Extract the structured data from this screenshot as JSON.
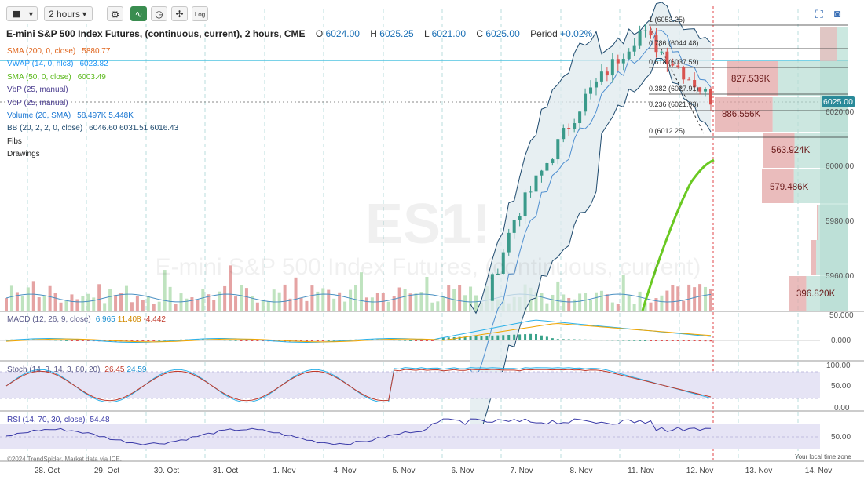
{
  "toolbar": {
    "chart_type_icon": "candlestick-icon",
    "interval": "2 hours",
    "log_label": "Log",
    "icons": [
      "gear-icon",
      "line-studies-icon",
      "clock-icon",
      "drawing-icon",
      "log-scale-icon",
      "fullscreen-icon",
      "camera-icon"
    ]
  },
  "header": {
    "name": "E-mini S&P 500 Index Futures, (continuous, current), 2 hours, CME",
    "open_label": "O",
    "open": "6024.00",
    "high_label": "H",
    "high": "6025.25",
    "low_label": "L",
    "low": "6021.00",
    "close_label": "C",
    "close": "6025.00",
    "period_label": "Period",
    "period": "+0.02%"
  },
  "studies": [
    {
      "label": "SMA (200, 0, close)",
      "value": "5880.77",
      "color": "#e0661e"
    },
    {
      "label": "VWAP (14, 0, hlc3)",
      "value": "6023.82",
      "color": "#2196f3"
    },
    {
      "label": "SMA (50, 0, close)",
      "value": "6003.49",
      "color": "#6ac922"
    },
    {
      "label": "VbP (25, manual)",
      "value": "",
      "color": "#4a3d8f"
    },
    {
      "label": "VbP (25, manual)",
      "value": "",
      "color": "#4a3d8f"
    },
    {
      "label": "Volume (20, SMA)",
      "value": "58.497K  5.448K",
      "color": "#1976d2"
    },
    {
      "label": "BB (20, 2, 2, 0, close)",
      "value": "6046.60  6031.51  6016.43",
      "color": "#1e4a6e"
    },
    {
      "label": "Fibs",
      "value": "",
      "color": "#222222"
    },
    {
      "label": "Drawings",
      "value": "",
      "color": "#222222"
    }
  ],
  "watermark": {
    "symbol": "ES1!",
    "name": "E-mini S&P 500 Index Futures, (continuous, current)"
  },
  "price_axis": {
    "ticks": [
      "6020.00",
      "6000.00",
      "5980.00",
      "5960.00"
    ],
    "last_price": "6025.00"
  },
  "vbp_labels": [
    "827.539K",
    "886.556K",
    "563.924K",
    "579.486K",
    "396.820K"
  ],
  "fib_levels": [
    {
      "label": "1 (6053.25)"
    },
    {
      "label": "0.786 (6044.48)"
    },
    {
      "label": "0.618 (6037.59)"
    },
    {
      "label": "0.382 (6027.91)"
    },
    {
      "label": "0.236 (6021.93)"
    },
    {
      "label": "0 (6012.25)"
    }
  ],
  "macd": {
    "label": "MACD (12, 26, 9, close)",
    "v1": "6.965",
    "v2": "11.408",
    "v3": "-4.442",
    "ticks": [
      "50.000",
      "0.000"
    ]
  },
  "stoch": {
    "label": "Stoch (14, 3, 14, 3, 80, 20)",
    "v1": "26.45",
    "v2": "24.59",
    "ticks": [
      "100.00",
      "50.00",
      "0.00"
    ]
  },
  "rsi": {
    "label": "RSI (14, 70, 30, close)",
    "v1": "54.48",
    "ticks": [
      "50.00"
    ]
  },
  "x_labels": [
    "28. Oct",
    "29. Oct",
    "30. Oct",
    "31. Oct",
    "1. Nov",
    "4. Nov",
    "5. Nov",
    "6. Nov",
    "7. Nov",
    "8. Nov",
    "11. Nov",
    "12. Nov",
    "13. Nov",
    "14. Nov"
  ],
  "footer": {
    "copyright": "©2024 TrendSpider. Market data via ICE.",
    "timezone": "Your local time zone"
  },
  "colors": {
    "up": "#3a9a8a",
    "down": "#d9534f",
    "sma50": "#6ac922",
    "vwap": "#4fc3e0",
    "bb": "#1e4a6e",
    "accent": "#2a8a99"
  },
  "chart_data": {
    "type": "candlestick",
    "interval": "2 hours",
    "x": [
      "28. Oct",
      "29. Oct",
      "30. Oct",
      "31. Oct",
      "1. Nov",
      "4. Nov",
      "5. Nov",
      "6. Nov",
      "7. Nov",
      "8. Nov",
      "11. Nov",
      "12. Nov"
    ],
    "last": {
      "open": 6024.0,
      "high": 6025.25,
      "low": 6021.0,
      "close": 6025.0
    },
    "price_ticks": [
      6020,
      6000,
      5980,
      5960
    ],
    "fib_levels": [
      6053.25,
      6044.48,
      6037.59,
      6027.91,
      6021.93,
      6012.25
    ],
    "bb": [
      6046.6,
      6031.51,
      6016.43
    ],
    "sma200": 5880.77,
    "sma50": 6003.49,
    "vwap": 6023.82
  }
}
